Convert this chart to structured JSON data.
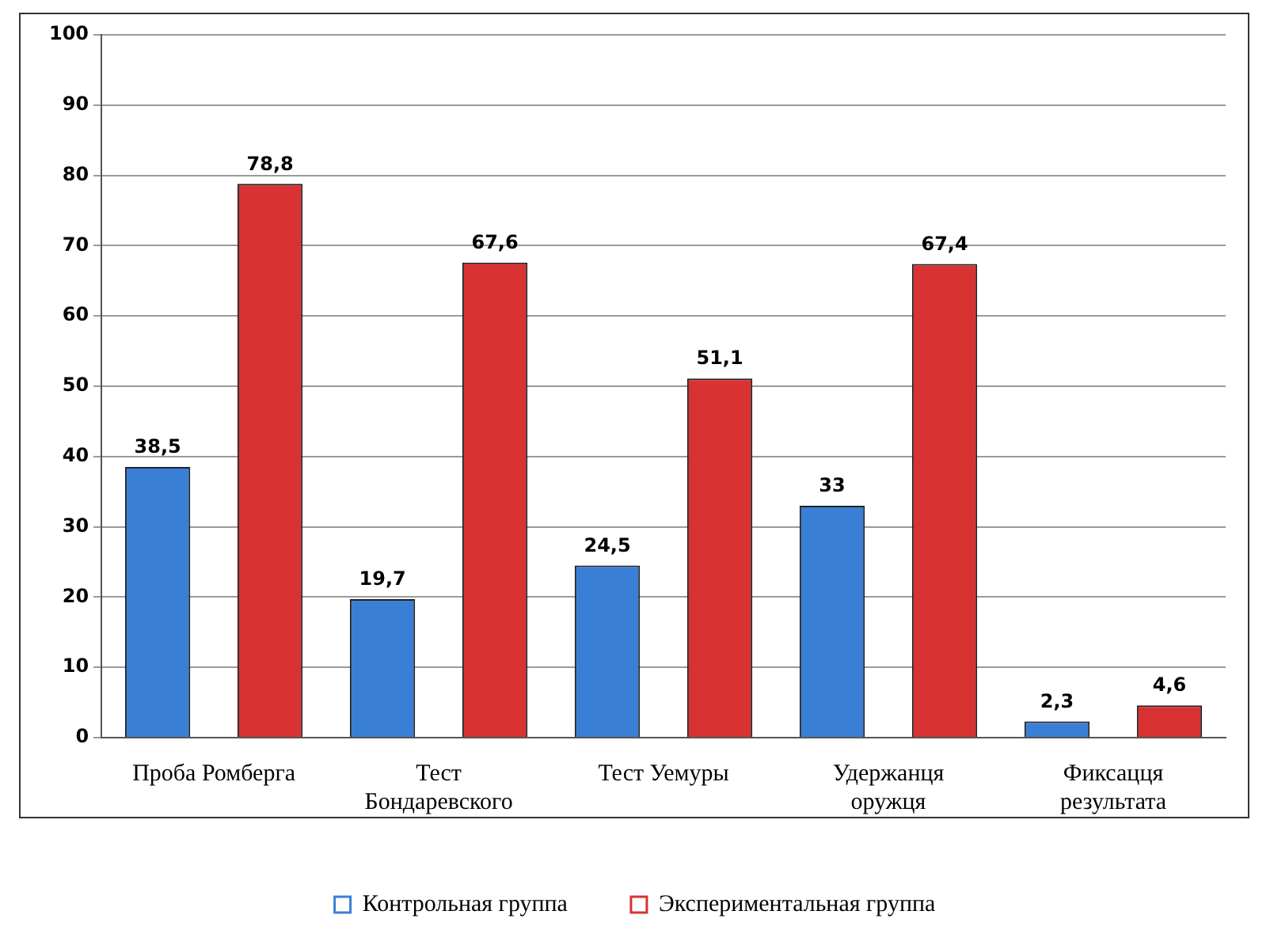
{
  "chart_data": {
    "type": "bar",
    "categories": [
      "Проба Ромберга",
      "Тест\nБондаревского",
      "Тест Уемуры",
      "Удержанця\nоружця",
      "Фиксацця\nрезультата"
    ],
    "series": [
      {
        "name": "Контрольная группа",
        "color": "#3a7fd6",
        "values": [
          38.5,
          19.7,
          24.5,
          33,
          2.3
        ],
        "value_labels": [
          "38,5",
          "19,7",
          "24,5",
          "33",
          "2,3"
        ]
      },
      {
        "name": "Экспериментальная группа",
        "color": "#d93232",
        "values": [
          78.8,
          67.6,
          51.1,
          67.4,
          4.6
        ],
        "value_labels": [
          "78,8",
          "67,6",
          "51,1",
          "67,4",
          "4,6"
        ]
      }
    ],
    "ylim": [
      0,
      100
    ],
    "yticks": [
      0,
      10,
      20,
      30,
      40,
      50,
      60,
      70,
      80,
      90,
      100
    ],
    "grid": "y",
    "legend": "bottom"
  }
}
